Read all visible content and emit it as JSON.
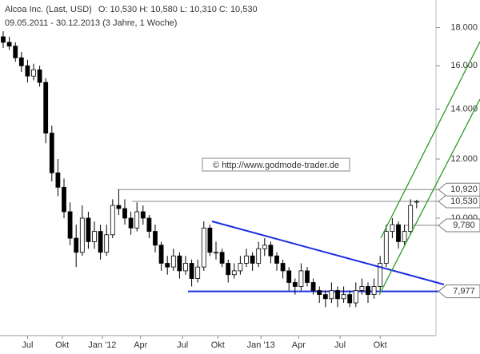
{
  "header": {
    "title": "Alcoa Inc. (Last, USD)",
    "ohlc": "O: 10,530  H: 10,580  L: 10,310  C: 10,530",
    "period": "09.05.2011 - 30.12.2013 (3 Jahre, 1 Woche)",
    "watermark": "© http://www.godmode-trader.de"
  },
  "chart_data": {
    "type": "candlestick",
    "log_scale": true,
    "categories": [
      null,
      null,
      null,
      null,
      null,
      null,
      null,
      null,
      null,
      null,
      null,
      null,
      null,
      null,
      null,
      null,
      null,
      null,
      null,
      null,
      null,
      null,
      null,
      null,
      null,
      null,
      null,
      null,
      null,
      null,
      null,
      null,
      null,
      null,
      null,
      null,
      null,
      null,
      null,
      null,
      null,
      null,
      null,
      null,
      null,
      null,
      null,
      null,
      null,
      null,
      null,
      null,
      null,
      null,
      null,
      null,
      null,
      null,
      null,
      null,
      null,
      null,
      null,
      null,
      null,
      null,
      null,
      null,
      null
    ],
    "open": [
      17.5,
      17.2,
      17.0,
      16.4,
      16.0,
      15.5,
      15.8,
      15.2,
      13.0,
      11.5,
      11.0,
      10.2,
      9.4,
      9.0,
      10.0,
      9.3,
      9.6,
      9.0,
      9.5,
      10.4,
      10.3,
      10.0,
      9.7,
      10.2,
      10.0,
      9.6,
      9.2,
      8.7,
      8.6,
      8.9,
      8.5,
      8.7,
      8.3,
      8.6,
      9.7,
      9.0,
      9.0,
      8.7,
      8.4,
      8.5,
      8.7,
      8.9,
      8.7,
      9.1,
      9.2,
      8.9,
      8.7,
      8.5,
      8.2,
      8.1,
      8.5,
      8.2,
      8.0,
      7.9,
      7.8,
      8.0,
      7.8,
      7.9,
      7.7,
      8.0,
      8.1,
      7.9,
      8.1,
      8.7,
      9.6,
      9.8,
      9.3,
      9.6,
      10.53
    ],
    "high": [
      17.8,
      17.5,
      17.2,
      16.7,
      16.3,
      16.1,
      16.0,
      15.4,
      13.3,
      12.0,
      11.3,
      10.5,
      9.8,
      10.4,
      10.2,
      9.9,
      9.8,
      9.8,
      10.6,
      10.92,
      10.6,
      10.2,
      10.5,
      10.4,
      10.1,
      9.8,
      9.3,
      8.9,
      9.1,
      9.0,
      8.9,
      8.8,
      8.8,
      9.9,
      9.8,
      9.3,
      9.1,
      8.8,
      8.7,
      8.9,
      9.1,
      9.0,
      9.3,
      9.4,
      9.3,
      9.0,
      8.8,
      8.6,
      8.3,
      8.7,
      8.6,
      8.3,
      8.1,
      8.0,
      8.2,
      8.1,
      8.1,
      8.0,
      8.2,
      8.3,
      8.2,
      8.3,
      8.9,
      9.8,
      10.0,
      9.9,
      9.8,
      10.6,
      10.58
    ],
    "low": [
      16.9,
      16.8,
      16.2,
      15.7,
      15.2,
      15.3,
      15.0,
      12.6,
      11.2,
      10.7,
      10.0,
      9.2,
      8.6,
      8.9,
      9.1,
      9.1,
      8.8,
      8.9,
      9.4,
      10.1,
      9.8,
      9.5,
      9.6,
      9.8,
      9.4,
      9.0,
      8.5,
      8.4,
      8.5,
      8.3,
      8.4,
      8.1,
      8.2,
      8.5,
      8.9,
      8.8,
      8.6,
      8.2,
      8.3,
      8.4,
      8.6,
      8.5,
      8.6,
      8.9,
      8.7,
      8.5,
      8.3,
      8.0,
      7.9,
      8.0,
      8.1,
      7.9,
      7.7,
      7.6,
      7.7,
      7.6,
      7.7,
      7.6,
      7.6,
      7.9,
      7.7,
      7.8,
      8.0,
      8.6,
      9.4,
      9.1,
      9.2,
      9.5,
      10.31
    ],
    "close": [
      17.2,
      17.0,
      16.4,
      16.0,
      15.5,
      15.8,
      15.2,
      13.0,
      11.5,
      11.0,
      10.2,
      9.4,
      9.0,
      10.0,
      9.3,
      9.6,
      9.0,
      9.5,
      10.4,
      10.3,
      10.0,
      9.7,
      10.2,
      10.0,
      9.6,
      9.2,
      8.7,
      8.6,
      8.9,
      8.5,
      8.7,
      8.3,
      8.6,
      9.7,
      9.0,
      9.0,
      8.7,
      8.4,
      8.5,
      8.7,
      8.9,
      8.7,
      9.1,
      9.2,
      8.9,
      8.7,
      8.5,
      8.2,
      8.1,
      8.5,
      8.2,
      8.0,
      7.9,
      7.8,
      8.0,
      7.8,
      7.9,
      7.7,
      8.0,
      8.1,
      7.9,
      8.1,
      8.7,
      9.6,
      9.8,
      9.3,
      9.6,
      10.4,
      10.53
    ],
    "up_color": "#ffffff",
    "down_color": "#000000",
    "ylim": [
      6.96,
      19.6
    ],
    "yticks": [
      {
        "value": 10,
        "label": "10.000"
      },
      {
        "value": 12,
        "label": "12.000"
      },
      {
        "value": 14,
        "label": "14.000"
      },
      {
        "value": 16,
        "label": "16.000"
      },
      {
        "value": 18,
        "label": "18.000"
      }
    ],
    "xticks": [
      {
        "value": 4,
        "label": "Jul"
      },
      {
        "value": 9.7,
        "label": "Okt"
      },
      {
        "value": 16.3,
        "label": "Jan '12"
      },
      {
        "value": 22.6,
        "label": "Apr"
      },
      {
        "value": 29.5,
        "label": "Jul"
      },
      {
        "value": 35.3,
        "label": "Okt"
      },
      {
        "value": 42.4,
        "label": "Jan '13"
      },
      {
        "value": 48.6,
        "label": "Apr"
      },
      {
        "value": 55.4,
        "label": "Jul"
      },
      {
        "value": 62,
        "label": "Okt"
      }
    ],
    "levels": [
      {
        "value": 10.92,
        "label": "10,920"
      },
      {
        "value": 10.53,
        "label": "10,530"
      },
      {
        "value": 9.78,
        "label": "9,780"
      },
      {
        "value": 7.977,
        "label": "7,977"
      }
    ]
  }
}
